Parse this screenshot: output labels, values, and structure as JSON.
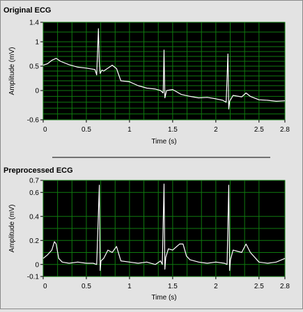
{
  "chart_data": [
    {
      "type": "line",
      "title": "Original ECG",
      "xlabel": "Time (s)",
      "ylabel": "Amplitude (mV)",
      "xlim": [
        0,
        2.8
      ],
      "ylim": [
        -0.6,
        1.4
      ],
      "x_ticks": [
        0,
        0.5,
        1,
        1.5,
        2,
        2.5,
        2.8
      ],
      "x_tick_labels": [
        "0",
        "0.5",
        "1",
        "1.5",
        "2",
        "2.5",
        "2.8"
      ],
      "y_ticks": [
        -0.6,
        0,
        0.5,
        1,
        1.4
      ],
      "y_tick_labels": [
        "-0.6",
        "0",
        "0.5",
        "1",
        "1.4"
      ],
      "grid": true,
      "background_color": "#000000",
      "grid_color": "#0f7a0f",
      "line_color": "#ffffff",
      "x": [
        0,
        0.05,
        0.1,
        0.15,
        0.2,
        0.3,
        0.4,
        0.5,
        0.6,
        0.62,
        0.64,
        0.65,
        0.66,
        0.68,
        0.7,
        0.8,
        0.85,
        0.9,
        1.0,
        1.1,
        1.2,
        1.3,
        1.36,
        1.39,
        1.4,
        1.41,
        1.43,
        1.5,
        1.6,
        1.7,
        1.8,
        1.9,
        2.0,
        2.08,
        2.12,
        2.14,
        2.15,
        2.16,
        2.2,
        2.3,
        2.35,
        2.4,
        2.5,
        2.6,
        2.7,
        2.8
      ],
      "values": [
        0.52,
        0.55,
        0.62,
        0.66,
        0.6,
        0.53,
        0.48,
        0.46,
        0.43,
        0.32,
        1.27,
        0.55,
        0.35,
        0.42,
        0.4,
        0.52,
        0.45,
        0.2,
        0.18,
        0.1,
        0.05,
        0.03,
        0.0,
        -0.05,
        0.83,
        -0.15,
        0.0,
        0.02,
        -0.08,
        -0.12,
        -0.15,
        -0.14,
        -0.17,
        -0.2,
        -0.24,
        0.75,
        -0.38,
        -0.22,
        -0.1,
        -0.13,
        -0.05,
        -0.12,
        -0.19,
        -0.2,
        -0.22,
        -0.21
      ]
    },
    {
      "type": "line",
      "title": "Preprocessed ECG",
      "xlabel": "Time (s)",
      "ylabel": "Amplitude (mV)",
      "xlim": [
        0,
        2.8
      ],
      "ylim": [
        -0.1,
        0.7
      ],
      "x_ticks": [
        0,
        0.5,
        1,
        1.5,
        2,
        2.5,
        2.8
      ],
      "x_tick_labels": [
        "0",
        "0.5",
        "1",
        "1.5",
        "2",
        "2.5",
        "2.8"
      ],
      "y_ticks": [
        -0.1,
        0,
        0.2,
        0.4,
        0.6,
        0.7
      ],
      "y_tick_labels": [
        "-0.1",
        "0",
        "0.2",
        "0.4",
        "0.6",
        "0.7"
      ],
      "grid": true,
      "background_color": "#000000",
      "grid_color": "#0f7a0f",
      "line_color": "#ffffff",
      "x": [
        0,
        0.05,
        0.1,
        0.13,
        0.15,
        0.18,
        0.22,
        0.3,
        0.4,
        0.5,
        0.58,
        0.62,
        0.65,
        0.66,
        0.67,
        0.7,
        0.75,
        0.8,
        0.85,
        0.9,
        1.0,
        1.1,
        1.2,
        1.3,
        1.36,
        1.38,
        1.4,
        1.41,
        1.42,
        1.45,
        1.5,
        1.58,
        1.62,
        1.66,
        1.7,
        1.8,
        1.9,
        2.0,
        2.1,
        2.13,
        2.15,
        2.16,
        2.17,
        2.2,
        2.3,
        2.35,
        2.4,
        2.5,
        2.6,
        2.7,
        2.8
      ],
      "values": [
        0.05,
        0.08,
        0.12,
        0.19,
        0.17,
        0.05,
        0.02,
        0.01,
        0.02,
        0.01,
        0.01,
        0.0,
        0.66,
        -0.05,
        0.03,
        0.05,
        0.12,
        0.1,
        0.15,
        0.03,
        0.02,
        0.01,
        0.02,
        0.0,
        0.03,
        0.0,
        0.67,
        -0.04,
        0.06,
        0.13,
        0.12,
        0.17,
        0.17,
        0.07,
        0.04,
        0.02,
        0.01,
        0.02,
        0.01,
        0.0,
        0.66,
        -0.05,
        0.04,
        0.12,
        0.1,
        0.17,
        0.1,
        0.02,
        0.01,
        0.02,
        0.05
      ]
    }
  ]
}
